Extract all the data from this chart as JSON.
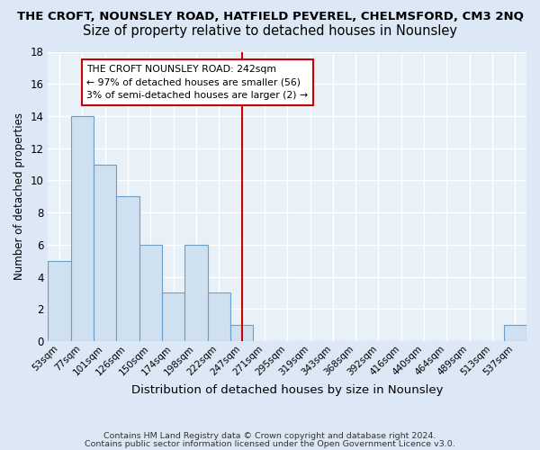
{
  "title": "THE CROFT, NOUNSLEY ROAD, HATFIELD PEVEREL, CHELMSFORD, CM3 2NQ",
  "subtitle": "Size of property relative to detached houses in Nounsley",
  "xlabel": "Distribution of detached houses by size in Nounsley",
  "ylabel": "Number of detached properties",
  "categories": [
    "53sqm",
    "77sqm",
    "101sqm",
    "126sqm",
    "150sqm",
    "174sqm",
    "198sqm",
    "222sqm",
    "247sqm",
    "271sqm",
    "295sqm",
    "319sqm",
    "343sqm",
    "368sqm",
    "392sqm",
    "416sqm",
    "440sqm",
    "464sqm",
    "489sqm",
    "513sqm",
    "537sqm"
  ],
  "values": [
    5,
    14,
    11,
    9,
    6,
    3,
    6,
    3,
    1,
    0,
    0,
    0,
    0,
    0,
    0,
    0,
    0,
    0,
    0,
    0,
    1
  ],
  "bar_color": "#cfe0f0",
  "bar_edge_color": "#6b9fc8",
  "highlight_index": 8,
  "highlight_line_color": "#cc0000",
  "annotation_line1": "THE CROFT NOUNSLEY ROAD: 242sqm",
  "annotation_line2": "← 97% of detached houses are smaller (56)",
  "annotation_line3": "3% of semi-detached houses are larger (2) →",
  "annotation_box_color": "#ffffff",
  "annotation_box_edge": "#cc0000",
  "ylim": [
    0,
    18
  ],
  "yticks": [
    0,
    2,
    4,
    6,
    8,
    10,
    12,
    14,
    16,
    18
  ],
  "footer_line1": "Contains HM Land Registry data © Crown copyright and database right 2024.",
  "footer_line2": "Contains public sector information licensed under the Open Government Licence v3.0.",
  "bg_color": "#dce8f5",
  "plot_bg_color": "#e8f1f8",
  "title_fontsize": 9.5,
  "subtitle_fontsize": 10.5
}
